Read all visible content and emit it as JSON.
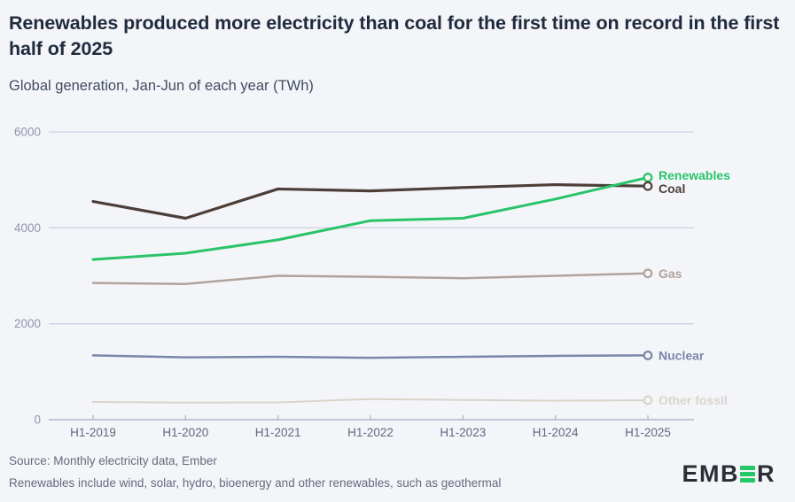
{
  "chart_data": {
    "type": "line",
    "title": "Renewables produced more electricity than coal for the first time on record in the first half of 2025",
    "subtitle": "Global generation, Jan-Jun of each year (TWh)",
    "categories": [
      "H1-2019",
      "H1-2020",
      "H1-2021",
      "H1-2022",
      "H1-2023",
      "H1-2024",
      "H1-2025"
    ],
    "series": [
      {
        "name": "Renewables",
        "color": "#29c469",
        "values": [
          3340,
          3470,
          3750,
          4150,
          4200,
          4600,
          5050
        ]
      },
      {
        "name": "Coal",
        "color": "#4d3f38",
        "values": [
          4550,
          4200,
          4810,
          4770,
          4840,
          4900,
          4870
        ]
      },
      {
        "name": "Gas",
        "color": "#b0a39a",
        "values": [
          2850,
          2830,
          3000,
          2980,
          2950,
          3000,
          3050
        ]
      },
      {
        "name": "Nuclear",
        "color": "#7b87a8",
        "values": [
          1340,
          1300,
          1310,
          1290,
          1310,
          1330,
          1340
        ]
      },
      {
        "name": "Other fossil",
        "color": "#d9d4cb",
        "values": [
          370,
          355,
          360,
          430,
          410,
          395,
          405
        ]
      }
    ],
    "xlabel": "",
    "ylabel": "",
    "ylim": [
      0,
      6000
    ],
    "yticks": [
      0,
      2000,
      4000,
      6000
    ],
    "grid": true,
    "legend_position": "end-of-line-labels"
  },
  "footer": {
    "source": "Source: Monthly electricity data, Ember",
    "note": "Renewables include wind, solar, hydro, bioenergy and other renewables, such as geothermal"
  },
  "logo": {
    "prefix": "EMB",
    "suffix": "R"
  },
  "colors": {
    "background": "#f4f5f9",
    "title": "#1f2a3d",
    "subtitle": "#414c61",
    "gridline": "#cbd2e0",
    "axis_line": "#adb6ca",
    "y_tick_label": "#8e97ad",
    "x_tick_label": "#5e6980",
    "footer_text": "#636c7d",
    "logo_green": "#26c767",
    "logo_dark": "#2c2e36"
  }
}
